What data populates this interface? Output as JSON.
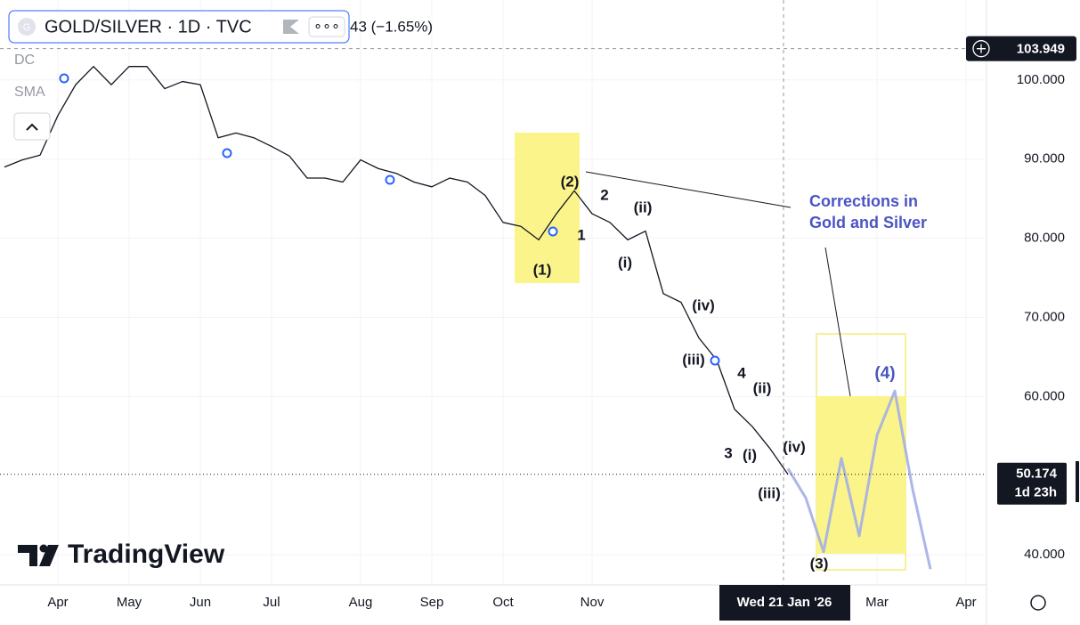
{
  "header": {
    "symbol": "GOLD/SILVER · 1D · TVC",
    "change": "43 (−1.65%)",
    "indicators": [
      "DC",
      "SMA"
    ]
  },
  "chart_data": {
    "type": "line",
    "categories": [
      null,
      null,
      null,
      "Apr",
      null,
      null,
      null,
      "May",
      null,
      null,
      null,
      "Jun",
      null,
      null,
      null,
      "Jul",
      null,
      null,
      null,
      null,
      "Aug",
      null,
      null,
      null,
      "Sep",
      null,
      null,
      null,
      "Oct",
      null,
      null,
      null,
      null,
      "Nov",
      null,
      null,
      null,
      null,
      null,
      null,
      null,
      null,
      null,
      null,
      "Wed 21 Jan '26",
      null,
      null,
      null,
      null,
      "Mar",
      null,
      null,
      null,
      null,
      "Apr",
      null
    ],
    "series": [
      {
        "color": "#131722",
        "values": [
          89,
          89.9,
          90.5,
          95.5,
          99.4,
          101.7,
          99.4,
          101.7,
          101.7,
          98.9,
          99.8,
          99.4,
          92.7,
          93.3,
          92.7,
          91.6,
          90.4,
          87.6,
          87.6,
          87.1,
          89.9,
          88.8,
          88.2,
          87.1,
          86.5,
          87.6,
          87.1,
          85.4,
          82.0,
          81.5,
          79.8,
          83.1,
          86.0,
          83.1,
          82.0,
          79.8,
          80.9,
          73.0,
          71.9,
          67.4,
          64.6,
          58.4,
          56.2,
          53.4,
          50.174,
          null,
          null,
          null,
          null,
          null,
          null,
          null,
          null,
          null,
          null,
          null
        ]
      },
      {
        "color": "#a3aee6",
        "values": [
          null,
          null,
          null,
          null,
          null,
          null,
          null,
          null,
          null,
          null,
          null,
          null,
          null,
          null,
          null,
          null,
          null,
          null,
          null,
          null,
          null,
          null,
          null,
          null,
          null,
          null,
          null,
          null,
          null,
          null,
          null,
          null,
          null,
          null,
          null,
          null,
          null,
          null,
          null,
          null,
          null,
          null,
          null,
          null,
          50.9,
          47.2,
          40.4,
          52.2,
          42.4,
          55.1,
          60.7,
          48.3,
          38.2,
          null,
          null,
          null
        ]
      }
    ],
    "ylim": [
      36.2,
      110.1
    ],
    "yticks": [
      {
        "value": 40,
        "label": "40.000"
      },
      {
        "value": 60,
        "label": "60.000"
      },
      {
        "value": 70,
        "label": "70.000"
      },
      {
        "value": 80,
        "label": "80.000"
      },
      {
        "value": 90,
        "label": "90.000"
      },
      {
        "value": 100,
        "label": "100.000"
      }
    ],
    "grid": true,
    "crosshair_price": 103.949,
    "last_price": 50.174,
    "countdown": "1d 23h",
    "annotations": [
      "(1)",
      "(2)",
      "1",
      "2",
      "(i)",
      "(ii)",
      "(iv)",
      "(iii)",
      "4",
      "(ii)",
      "3",
      "(i)",
      "(iv)",
      "(iii)",
      "(3)",
      "(4)"
    ],
    "callout": [
      "Corrections in",
      "Gold and Silver"
    ]
  },
  "watermark": "TradingView"
}
